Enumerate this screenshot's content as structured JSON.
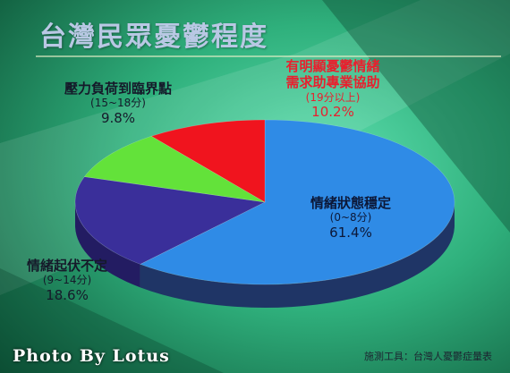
{
  "title": "台灣民眾憂鬱程度",
  "watermark": "Photo By Lotus",
  "source": "施測工具：台灣人憂鬱症量表",
  "chart_data": {
    "type": "pie",
    "title": "台灣民眾憂鬱程度",
    "slices": [
      {
        "label": "情緒狀態穩定",
        "range": "(0~8分)",
        "value": 61.4,
        "value_label": "61.4%",
        "color": "#2f8be6",
        "side": "#1f3566"
      },
      {
        "label": "情緒起伏不定",
        "range": "(9~14分)",
        "value": 18.6,
        "value_label": "18.6%",
        "color": "#3a2f9a",
        "side": "#231c62"
      },
      {
        "label": "壓力負荷到臨界點",
        "range": "(15~18分)",
        "value": 9.8,
        "value_label": "9.8%",
        "color": "#63e23a",
        "side": "#3a8a24"
      },
      {
        "label": "有明顯憂鬱情緒 需求助專業協助",
        "label_lines": [
          "有明顯憂鬱情緒",
          "需求助專業協助"
        ],
        "range": "(19分以上)",
        "value": 10.2,
        "value_label": "10.2%",
        "color": "#f0141e",
        "side": "#9a0c12"
      }
    ]
  }
}
